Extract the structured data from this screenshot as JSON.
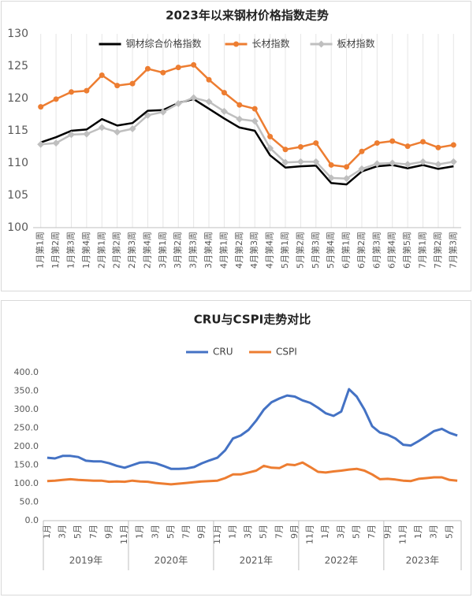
{
  "chart_data": [
    {
      "type": "line",
      "title": "2023年以来钢材价格指数走势",
      "categories": [
        "1月第1周",
        "1月第2周",
        "1月第3周",
        "1月第4周",
        "2月第1周",
        "2月第2周",
        "2月第3周",
        "2月第4周",
        "3月第1周",
        "3月第2周",
        "3月第3周",
        "3月第4周",
        "4月第1周",
        "4月第2周",
        "4月第3周",
        "4月第4周",
        "5月第1周",
        "5月第2周",
        "5月第3周",
        "5月第4周",
        "6月第1周",
        "6月第2周",
        "6月第3周",
        "6月第4周",
        "6月第5周",
        "7月第1周",
        "7月第2周",
        "7月第3周"
      ],
      "series": [
        {
          "name": "钢材综合价格指数",
          "color": "#000000",
          "marker": null,
          "values": [
            113.2,
            114,
            115,
            115.2,
            116.8,
            115.8,
            116.2,
            118.1,
            118.2,
            119.3,
            119.9,
            118.4,
            116.9,
            115.5,
            115,
            111.2,
            109.3,
            109.5,
            109.6,
            106.9,
            106.7,
            108.7,
            109.5,
            109.7,
            109.2,
            109.7,
            109.1,
            109.5
          ]
        },
        {
          "name": "长材指数",
          "color": "#ed7d31",
          "marker": "circle",
          "values": [
            118.7,
            119.9,
            121,
            121.2,
            123.6,
            122,
            122.3,
            124.6,
            124,
            124.8,
            125.2,
            122.9,
            120.9,
            119,
            118.4,
            114.1,
            112.1,
            112.5,
            113.1,
            109.7,
            109.4,
            111.8,
            113.1,
            113.4,
            112.6,
            113.3,
            112.4,
            112.8
          ]
        },
        {
          "name": "板材指数",
          "color": "#bfbfbf",
          "marker": "diamond",
          "values": [
            112.9,
            113.1,
            114.4,
            114.5,
            115.5,
            114.8,
            115.3,
            117.4,
            117.9,
            119.2,
            120.1,
            119.5,
            118,
            116.8,
            116.5,
            112.3,
            110.1,
            110.2,
            110.2,
            107.7,
            107.6,
            109.1,
            109.9,
            110,
            109.8,
            110.2,
            109.8,
            110.2
          ]
        }
      ],
      "ylim": [
        100,
        130
      ],
      "yticks": [
        100,
        105,
        110,
        115,
        120,
        125,
        130
      ],
      "grid": "x",
      "legend": "top"
    },
    {
      "type": "line",
      "title": "CRU与CSPI走势对比",
      "categories": [
        "1月",
        null,
        "3月",
        null,
        "5月",
        null,
        "7月",
        null,
        "9月",
        null,
        "11月",
        null,
        "1月",
        null,
        "3月",
        null,
        "5月",
        null,
        "7月",
        null,
        "9月",
        null,
        "11月",
        null,
        "1月",
        null,
        "3月",
        null,
        "5月",
        null,
        "7月",
        null,
        "9月",
        null,
        "11月",
        null,
        "1月",
        null,
        "3月",
        null,
        "5月",
        null,
        "7月",
        null,
        "9月",
        null,
        "11月",
        null,
        "1月",
        null,
        "3月",
        null,
        "5月",
        null
      ],
      "year_groups": [
        "2019年",
        "2020年",
        "2021年",
        "2022年",
        "2023年"
      ],
      "series": [
        {
          "name": "CRU",
          "color": "#4472c4",
          "marker": null,
          "values": [
            170,
            168,
            175,
            175,
            172,
            162,
            160,
            160,
            155,
            148,
            143,
            150,
            157,
            158,
            155,
            148,
            140,
            140,
            141,
            145,
            155,
            163,
            170,
            190,
            222,
            230,
            245,
            270,
            300,
            320,
            330,
            338,
            335,
            325,
            318,
            305,
            290,
            283,
            295,
            355,
            335,
            300,
            255,
            238,
            232,
            222,
            205,
            203,
            215,
            228,
            242,
            248,
            237,
            230
          ]
        },
        {
          "name": "CSPI",
          "color": "#ed7d31",
          "marker": null,
          "values": [
            107,
            108,
            110,
            112,
            110,
            109,
            108,
            108,
            105,
            106,
            105,
            108,
            106,
            105,
            102,
            100,
            98,
            100,
            102,
            104,
            106,
            107,
            108,
            115,
            125,
            125,
            130,
            135,
            148,
            143,
            142,
            152,
            150,
            157,
            145,
            132,
            130,
            133,
            135,
            138,
            140,
            135,
            125,
            112,
            113,
            111,
            108,
            107,
            113,
            115,
            117,
            117,
            110,
            108
          ]
        }
      ],
      "ylim": [
        0,
        400
      ],
      "yticks": [
        {
          "value": 0,
          "label": "0.0"
        },
        {
          "value": 50,
          "label": "50.0"
        },
        {
          "value": 100,
          "label": "100.0"
        },
        {
          "value": 150,
          "label": "150.0"
        },
        {
          "value": 200,
          "label": "200.0"
        },
        {
          "value": 250,
          "label": "250.0"
        },
        {
          "value": 300,
          "label": "300.0"
        },
        {
          "value": 350,
          "label": "350.0"
        },
        {
          "value": 400,
          "label": "400.0"
        }
      ],
      "grid": false,
      "legend": "top"
    }
  ]
}
